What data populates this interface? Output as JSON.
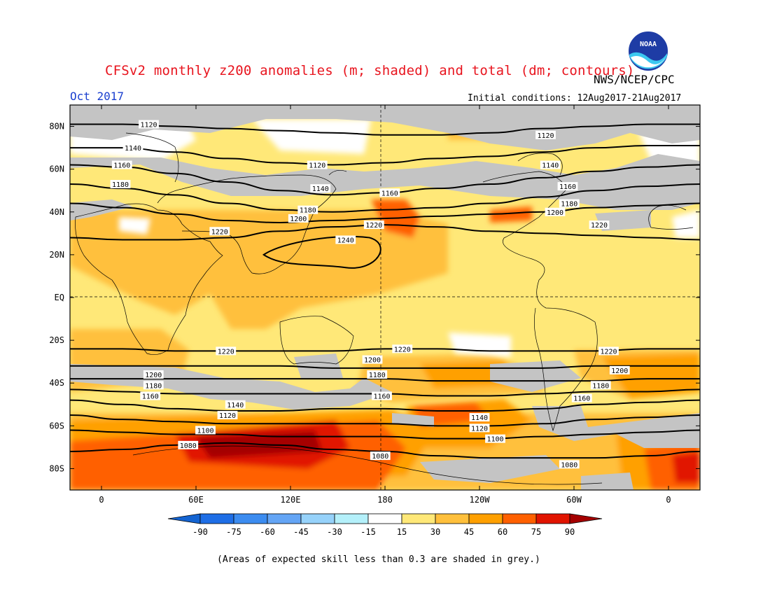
{
  "header": {
    "title": "CFSv2 monthly z200 anomalies (m; shaded) and total (dm; contours)",
    "agency": "NWS/NCEP/CPC",
    "logo_text": "NOAA",
    "month": "Oct 2017",
    "initial_conditions": "Initial conditions: 12Aug2017-21Aug2017"
  },
  "footnote": "(Areas of expected skill less than 0.3 are shaded in grey.)",
  "map": {
    "lat_labels": [
      "80N",
      "60N",
      "40N",
      "20N",
      "EQ",
      "20S",
      "40S",
      "60S",
      "80S"
    ],
    "lat_values": [
      80,
      60,
      40,
      20,
      0,
      -20,
      -40,
      -60,
      -80
    ],
    "lon_labels": [
      "0",
      "60E",
      "120E",
      "180",
      "120W",
      "60W",
      "0"
    ],
    "lon_values": [
      0,
      60,
      120,
      180,
      240,
      300,
      360
    ],
    "contours": [
      {
        "level": "1120",
        "lats": [
          81,
          81,
          80,
          79,
          78,
          77,
          76,
          76,
          77,
          79,
          80,
          81,
          81
        ]
      },
      {
        "level": "1140",
        "lats": [
          70,
          70,
          68,
          65,
          63,
          62,
          63,
          65,
          66,
          68,
          70,
          71,
          71
        ]
      },
      {
        "level": "1160",
        "lats": [
          62,
          61,
          58,
          54,
          50,
          48,
          49,
          51,
          53,
          56,
          59,
          61,
          62
        ]
      },
      {
        "level": "1180",
        "lats": [
          53,
          51,
          48,
          44,
          41,
          40,
          41,
          42,
          44,
          47,
          50,
          52,
          53
        ]
      },
      {
        "level": "1200",
        "lats": [
          44,
          42,
          39,
          36,
          35,
          36,
          37,
          38,
          39,
          40,
          42,
          43,
          44
        ]
      },
      {
        "level": "1220",
        "lats": [
          28,
          27,
          27,
          28,
          31,
          33,
          34,
          33,
          31,
          30,
          29,
          28,
          27
        ]
      },
      {
        "level": "1220",
        "lats": [
          -24,
          -24,
          -25,
          -25,
          -25,
          -25,
          -24,
          -24,
          -25,
          -25,
          -25,
          -24,
          -24
        ]
      },
      {
        "level": "1200",
        "lats": [
          -32,
          -32,
          -32,
          -32,
          -32,
          -33,
          -33,
          -33,
          -33,
          -33,
          -32,
          -32,
          -32
        ]
      },
      {
        "level": "1180",
        "lats": [
          -38,
          -38,
          -38,
          -38,
          -38,
          -38,
          -38,
          -39,
          -39,
          -39,
          -39,
          -38,
          -38
        ]
      },
      {
        "level": "1160",
        "lats": [
          -43,
          -44,
          -45,
          -45,
          -45,
          -45,
          -45,
          -46,
          -46,
          -45,
          -44,
          -44,
          -43
        ]
      },
      {
        "level": "1140",
        "lats": [
          -48,
          -50,
          -52,
          -53,
          -53,
          -52,
          -52,
          -53,
          -53,
          -52,
          -50,
          -49,
          -48
        ]
      },
      {
        "level": "1120",
        "lats": [
          -55,
          -57,
          -58,
          -59,
          -59,
          -59,
          -59,
          -60,
          -60,
          -59,
          -57,
          -56,
          -55
        ]
      },
      {
        "level": "1100",
        "lats": [
          -62,
          -63,
          -64,
          -64,
          -65,
          -65,
          -65,
          -66,
          -66,
          -65,
          -64,
          -63,
          -62
        ]
      },
      {
        "level": "1080",
        "lats": [
          -72,
          -71,
          -69,
          -68,
          -69,
          -71,
          -72,
          -74,
          -75,
          -75,
          -75,
          -74,
          -72
        ]
      }
    ],
    "closed_contour": {
      "level": "1240"
    },
    "contour_labels": [
      {
        "text": "1120",
        "lon": 30,
        "lat": 81
      },
      {
        "text": "1140",
        "lon": 20,
        "lat": 70
      },
      {
        "text": "1160",
        "lon": 13,
        "lat": 62
      },
      {
        "text": "1180",
        "lon": 12,
        "lat": 53
      },
      {
        "text": "1220",
        "lon": 75,
        "lat": 31
      },
      {
        "text": "1120",
        "lon": 137,
        "lat": 62
      },
      {
        "text": "1140",
        "lon": 139,
        "lat": 51
      },
      {
        "text": "1180",
        "lon": 131,
        "lat": 41
      },
      {
        "text": "1200",
        "lon": 125,
        "lat": 37
      },
      {
        "text": "1160",
        "lon": 183,
        "lat": 49
      },
      {
        "text": "1220",
        "lon": 173,
        "lat": 34
      },
      {
        "text": "1240",
        "lon": 155,
        "lat": 27
      },
      {
        "text": "1120",
        "lon": 282,
        "lat": 76
      },
      {
        "text": "1140",
        "lon": 285,
        "lat": 62
      },
      {
        "text": "1160",
        "lon": 296,
        "lat": 52
      },
      {
        "text": "1180",
        "lon": 297,
        "lat": 44
      },
      {
        "text": "1200",
        "lon": 288,
        "lat": 40
      },
      {
        "text": "1220",
        "lon": 316,
        "lat": 34
      },
      {
        "text": "1220",
        "lon": 79,
        "lat": -25
      },
      {
        "text": "1220",
        "lon": 191,
        "lat": -24
      },
      {
        "text": "1220",
        "lon": 322,
        "lat": -25
      },
      {
        "text": "1200",
        "lon": 33,
        "lat": -36
      },
      {
        "text": "1200",
        "lon": 172,
        "lat": -29
      },
      {
        "text": "1200",
        "lon": 329,
        "lat": -34
      },
      {
        "text": "1180",
        "lon": 33,
        "lat": -41
      },
      {
        "text": "1180",
        "lon": 175,
        "lat": -36
      },
      {
        "text": "1180",
        "lon": 317,
        "lat": -41
      },
      {
        "text": "1160",
        "lon": 31,
        "lat": -46
      },
      {
        "text": "1160",
        "lon": 178,
        "lat": -46
      },
      {
        "text": "1160",
        "lon": 305,
        "lat": -47
      },
      {
        "text": "1140",
        "lon": 85,
        "lat": -50
      },
      {
        "text": "1140",
        "lon": 240,
        "lat": -56
      },
      {
        "text": "1120",
        "lon": 80,
        "lat": -55
      },
      {
        "text": "1120",
        "lon": 240,
        "lat": -61
      },
      {
        "text": "1100",
        "lon": 66,
        "lat": -62
      },
      {
        "text": "1100",
        "lon": 250,
        "lat": -66
      },
      {
        "text": "1080",
        "lon": 55,
        "lat": -69
      },
      {
        "text": "1080",
        "lon": 177,
        "lat": -74
      },
      {
        "text": "1080",
        "lon": 297,
        "lat": -78
      }
    ]
  },
  "colorbar": {
    "labels": [
      "-90",
      "-75",
      "-60",
      "-45",
      "-30",
      "-15",
      "15",
      "30",
      "45",
      "60",
      "75",
      "90"
    ],
    "colors": [
      "#1464d2",
      "#1e6ee6",
      "#3c8cf0",
      "#64a5f5",
      "#96d2fa",
      "#b4f0fa",
      "#ffffff",
      "#ffe878",
      "#ffc03c",
      "#ffa000",
      "#ff6000",
      "#e11400",
      "#a50000"
    ]
  }
}
